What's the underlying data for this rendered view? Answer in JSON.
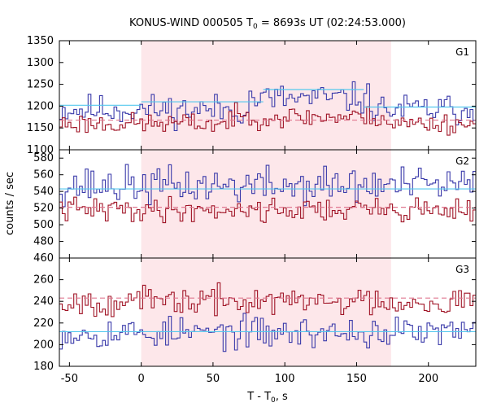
{
  "chart_data": {
    "type": "line",
    "title": {
      "main": "KONUS-WIND 000505 T",
      "sub": "0",
      "rest": " = 8693s UT (02:24:53.000)"
    },
    "xlabel": {
      "main": "T - T",
      "sub": "0",
      "rest": ", s"
    },
    "ylabel": "counts / sec",
    "xlim": [
      -57,
      233
    ],
    "xticks": [
      -50,
      0,
      50,
      100,
      150,
      200
    ],
    "highlight_interval": [
      0,
      174
    ],
    "colors": {
      "series_blue": "#3a3aaa",
      "series_red": "#a01426",
      "fit_blue": "#55c8ee",
      "fit_red": "#e07890",
      "highlight": "#fde7ea",
      "axis": "#000000"
    },
    "panels": [
      {
        "label": "G1",
        "ylim": [
          1100,
          1350
        ],
        "yticks": [
          1100,
          1150,
          1200,
          1250,
          1300,
          1350
        ],
        "series": [
          {
            "color": "blue",
            "base": 1192,
            "amp": 22,
            "hump_start": 75,
            "hump_end": 160,
            "hump": 25,
            "seed": 11
          },
          {
            "color": "red",
            "base": 1160,
            "amp": 15,
            "hump_start": 60,
            "hump_end": 170,
            "hump": 15,
            "seed": 23
          }
        ],
        "fits": [
          {
            "color": "blue",
            "segments": [
              [
                -57,
                0,
                1202
              ],
              [
                0,
                85,
                1210
              ],
              [
                85,
                155,
                1238
              ],
              [
                155,
                233,
                1198
              ]
            ]
          },
          {
            "color": "red",
            "segments": [
              [
                -57,
                233,
                1168
              ]
            ]
          }
        ]
      },
      {
        "label": "G2",
        "ylim": [
          460,
          590
        ],
        "yticks": [
          460,
          480,
          500,
          520,
          540,
          560,
          580
        ],
        "series": [
          {
            "color": "blue",
            "base": 547,
            "amp": 14,
            "hump_start": 0,
            "hump_end": 0,
            "hump": 0,
            "seed": 37
          },
          {
            "color": "red",
            "base": 518,
            "amp": 9,
            "hump_start": 0,
            "hump_end": 0,
            "hump": 0,
            "seed": 41
          }
        ],
        "fits": [
          {
            "color": "blue",
            "segments": [
              [
                -57,
                233,
                543
              ]
            ]
          },
          {
            "color": "red",
            "segments": [
              [
                -57,
                233,
                521
              ]
            ]
          }
        ]
      },
      {
        "label": "G3",
        "ylim": [
          180,
          280
        ],
        "yticks": [
          180,
          200,
          220,
          240,
          260
        ],
        "series": [
          {
            "color": "blue",
            "base": 211,
            "amp": 9,
            "hump_start": 0,
            "hump_end": 0,
            "hump": 0,
            "seed": 53
          },
          {
            "color": "red",
            "base": 240,
            "amp": 8,
            "hump_start": 0,
            "hump_end": 0,
            "hump": 0,
            "seed": 67
          }
        ],
        "fits": [
          {
            "color": "blue",
            "segments": [
              [
                -57,
                233,
                212
              ]
            ]
          },
          {
            "color": "red",
            "segments": [
              [
                -57,
                233,
                243
              ]
            ]
          }
        ]
      }
    ]
  }
}
